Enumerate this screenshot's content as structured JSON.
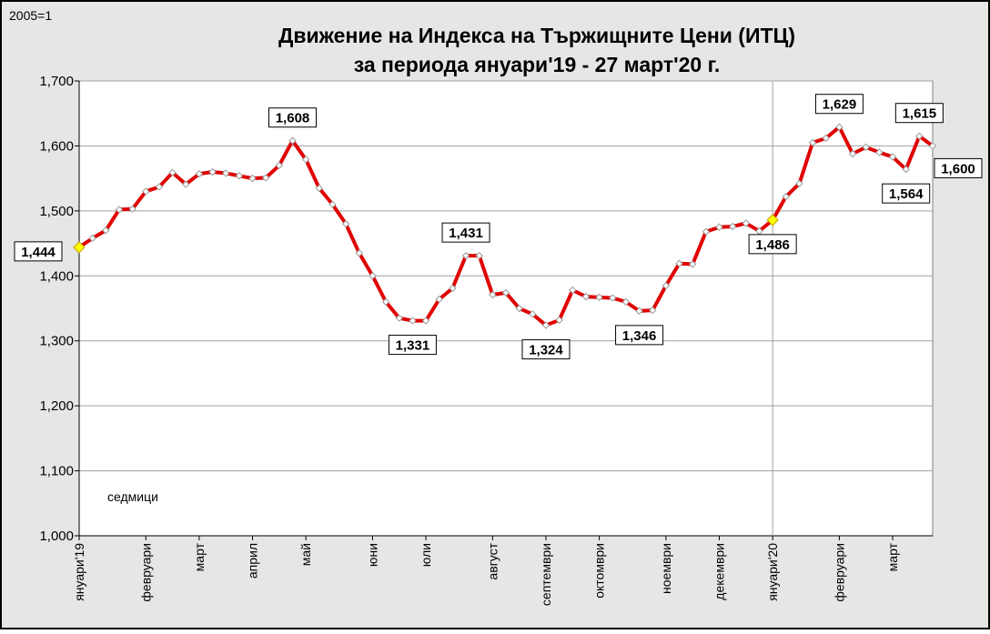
{
  "chart_data": {
    "type": "line",
    "title": "Движение на Индекса на Тържищните Цени (ИТЦ)",
    "subtitle": "за периода януари'19 - 27 март'20 г.",
    "y_label": "2005=1",
    "annotation": "седмици",
    "categories": [
      "януари'19",
      null,
      null,
      null,
      null,
      "февруари",
      null,
      null,
      null,
      "март",
      null,
      null,
      null,
      "април",
      null,
      null,
      null,
      "май",
      null,
      null,
      null,
      null,
      "юни",
      null,
      null,
      null,
      "юли",
      null,
      null,
      null,
      null,
      "август",
      null,
      null,
      null,
      "септември",
      null,
      null,
      null,
      "октомври",
      null,
      null,
      null,
      null,
      "ноември",
      null,
      null,
      null,
      "декември",
      null,
      null,
      null,
      "януари'20",
      null,
      null,
      null,
      null,
      "февруари",
      null,
      null,
      null,
      "март",
      null,
      null,
      null
    ],
    "series": [
      {
        "name": "ИТЦ",
        "color": "#e00000",
        "values": [
          1444,
          1458,
          1470,
          1502,
          1503,
          1530,
          1537,
          1559,
          1541,
          1557,
          1560,
          1558,
          1554,
          1550,
          1551,
          1570,
          1608,
          1579,
          1535,
          1510,
          1480,
          1435,
          1400,
          1360,
          1335,
          1331,
          1331,
          1364,
          1381,
          1431,
          1431,
          1371,
          1374,
          1350,
          1341,
          1324,
          1332,
          1378,
          1368,
          1367,
          1366,
          1360,
          1346,
          1347,
          1385,
          1419,
          1418,
          1468,
          1475,
          1476,
          1481,
          1469,
          1486,
          1522,
          1542,
          1605,
          1612,
          1629,
          1588,
          1598,
          1590,
          1583,
          1564,
          1615,
          1600
        ],
        "value_labels": [
          "1,444",
          null,
          null,
          null,
          null,
          null,
          null,
          null,
          null,
          null,
          null,
          null,
          null,
          null,
          null,
          null,
          "1,608",
          null,
          null,
          null,
          null,
          null,
          null,
          null,
          null,
          "1,331",
          null,
          null,
          null,
          "1,431",
          null,
          null,
          null,
          null,
          null,
          "1,324",
          null,
          null,
          null,
          null,
          null,
          null,
          "1,346",
          null,
          null,
          null,
          null,
          null,
          null,
          null,
          null,
          null,
          "1,486",
          null,
          null,
          null,
          null,
          "1,629",
          null,
          null,
          null,
          null,
          "1,564",
          "1,615",
          "1,600"
        ]
      }
    ],
    "highlight_points": [
      0,
      52
    ],
    "highlight_color": "#ffff00",
    "ylim": [
      1000,
      1700
    ],
    "yticks": [
      {
        "value": 1000,
        "label": "1,000"
      },
      {
        "value": 1100,
        "label": "1,100"
      },
      {
        "value": 1200,
        "label": "1,200"
      },
      {
        "value": 1300,
        "label": "1,300"
      },
      {
        "value": 1400,
        "label": "1,400"
      },
      {
        "value": 1500,
        "label": "1,500"
      },
      {
        "value": 1600,
        "label": "1,600"
      },
      {
        "value": 1700,
        "label": "1,700"
      }
    ],
    "grid": true
  }
}
